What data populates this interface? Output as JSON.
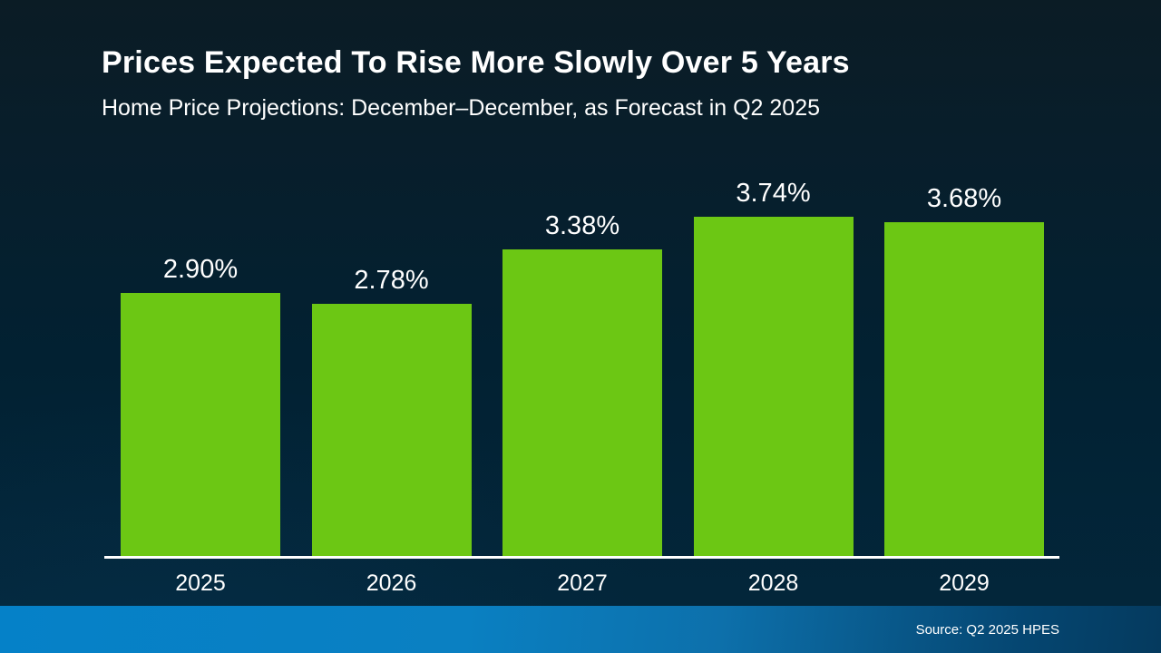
{
  "slide": {
    "title": "Prices Expected To Rise More Slowly Over 5 Years",
    "subtitle": "Home Price Projections: December–December, as Forecast in Q2 2025",
    "source": "Source: Q2 2025 HPES"
  },
  "chart_data": {
    "type": "bar",
    "title": "Prices Expected To Rise More Slowly Over 5 Years",
    "subtitle": "Home Price Projections: December–December, as Forecast in Q2 2025",
    "categories": [
      "2025",
      "2026",
      "2027",
      "2028",
      "2029"
    ],
    "values": [
      2.9,
      2.78,
      3.38,
      3.74,
      3.68
    ],
    "value_labels": [
      "2.90%",
      "2.78%",
      "3.38%",
      "3.74%",
      "3.68%"
    ],
    "xlabel": "",
    "ylabel": "",
    "ylim": [
      0,
      4.48
    ],
    "grid": false,
    "legend": "none",
    "bar_color": "#6cc714",
    "label_color": "#ffffff",
    "axis_color": "#ffffff",
    "background_top": "#0b1c25",
    "background_bottom": "#03273c",
    "footer_gradient_left": "#0581c8",
    "footer_gradient_right": "#053a5e"
  }
}
